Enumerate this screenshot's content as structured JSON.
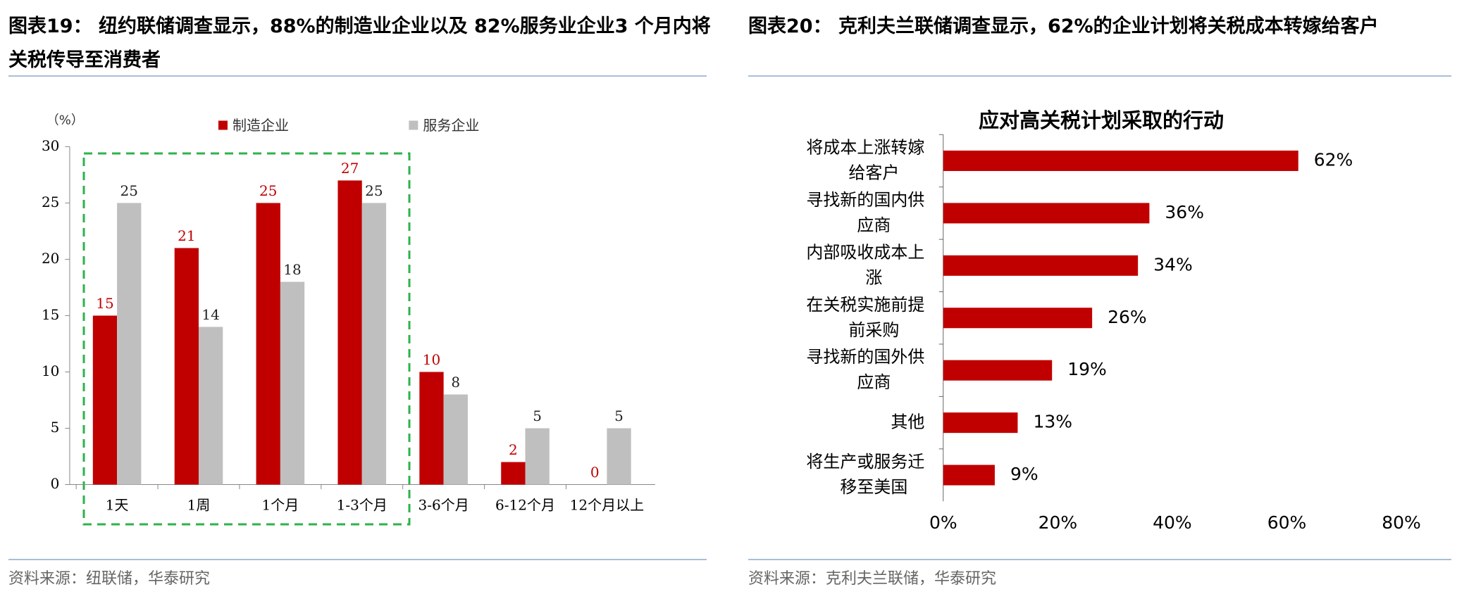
{
  "panels": [
    {
      "caption": "图表19： 纽约联储调查显示，88%的制造业企业以及 82%服务业企业3 个月内将关税传导至消费者",
      "source": "资料来源：纽联储，华泰研究"
    },
    {
      "caption": "图表20： 克利夫兰联储调查显示，62%的企业计划将关税成本转嫁给客户",
      "source": "资料来源：克利夫兰联储，华泰研究"
    }
  ],
  "chart_data": [
    {
      "type": "bar",
      "y_label": "（%）",
      "categories": [
        "1天",
        "1周",
        "1个月",
        "1-3个月",
        "3-6个月",
        "6-12个月",
        "12个月以上"
      ],
      "series": [
        {
          "name": "制造企业",
          "color": "#c00000",
          "values": [
            15,
            21,
            25,
            27,
            10,
            2,
            0
          ]
        },
        {
          "name": "服务企业",
          "color": "#bfbfbf",
          "values": [
            25,
            14,
            18,
            25,
            8,
            5,
            5
          ]
        }
      ],
      "ylim": [
        0,
        30
      ],
      "yticks": [
        0,
        5,
        10,
        15,
        20,
        25,
        30
      ]
    },
    {
      "type": "hbar",
      "title": "应对高关税计划采取的行动",
      "categories": [
        "将成本上涨转嫁给客户",
        "寻找新的国内供应商",
        "内部吸收成本上涨",
        "在关税实施前提前采购",
        "寻找新的国外供应商",
        "其他",
        "将生产或服务迁移至美国"
      ],
      "values": [
        62,
        36,
        34,
        26,
        19,
        13,
        9
      ],
      "value_labels": [
        "62%",
        "36%",
        "34%",
        "26%",
        "19%",
        "13%",
        "9%"
      ],
      "color": "#c00000",
      "xlim": [
        0,
        80
      ],
      "xticks": [
        {
          "value": 0,
          "label": "0%"
        },
        {
          "value": 20,
          "label": "20%"
        },
        {
          "value": 40,
          "label": "40%"
        },
        {
          "value": 60,
          "label": "60%"
        },
        {
          "value": 80,
          "label": "80%"
        }
      ]
    }
  ]
}
